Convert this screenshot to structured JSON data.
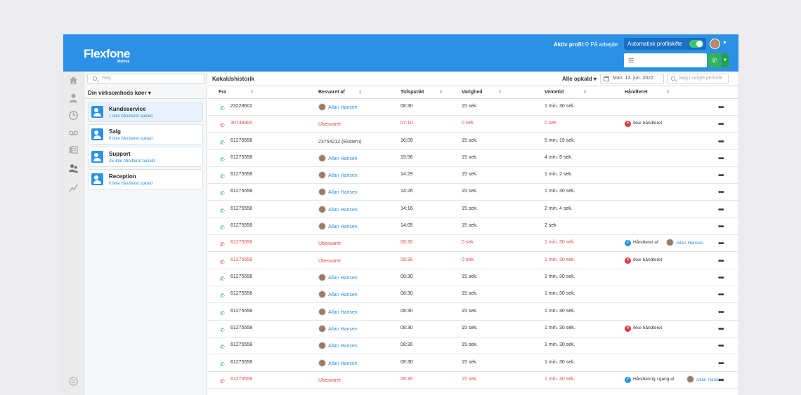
{
  "header": {
    "logo_main": "Flexfone",
    "logo_sub": "Myfone",
    "profile_label": "Aktiv profil:",
    "profile_value": "På arbejde",
    "auto_switch_label": "Automatisk profilskifte",
    "auto_switch_on": true
  },
  "sidebar": {
    "search_placeholder": "Søg",
    "queues_header": "Din virksomheds køer",
    "queues": [
      {
        "name": "Kundeservice",
        "count": "1 ikke håndteret opkald",
        "active": true
      },
      {
        "name": "Salg",
        "count": "0 ikke håndteret opkald",
        "active": false
      },
      {
        "name": "Support",
        "count": "25 ikke håndteret opkald",
        "active": false
      },
      {
        "name": "Reception",
        "count": "0 ikke håndteret opkald",
        "active": false
      }
    ]
  },
  "main": {
    "title": "Køkaldshistorik",
    "filter": "Alle opkald",
    "date": "Man. 13. jun. 2022",
    "search_placeholder": "Søg i valgte periode",
    "columns": [
      "Fra",
      "Besvaret af",
      "Tidspunkt",
      "Varighed",
      "Ventetid",
      "Håndteret"
    ]
  },
  "rows": [
    {
      "from": "23228602",
      "missed": false,
      "answered": "Allan Hansen",
      "answered_type": "agent",
      "time": "08:30",
      "duration": "15 sek.",
      "wait": "1 min. 30 sek.",
      "handled": null
    },
    {
      "from": "30739300",
      "missed": true,
      "answered": "Ubesvaret",
      "answered_type": "unanswered",
      "time": "07:10",
      "duration": "0 sek.",
      "wait": "0 sek",
      "handled": {
        "type": "x",
        "text": "Ikke håndteret"
      }
    },
    {
      "from": "61275558",
      "missed": false,
      "answered": "23754212 (Ekstern)",
      "answered_type": "external",
      "time": "16:09",
      "duration": "15 sek.",
      "wait": "5 min. 19 sek.",
      "handled": null
    },
    {
      "from": "61275558",
      "missed": false,
      "answered": "Allan Hansen",
      "answered_type": "agent",
      "time": "15:56",
      "duration": "15 sek.",
      "wait": "4 min. 9 sek.",
      "handled": null
    },
    {
      "from": "61275558",
      "missed": false,
      "answered": "Allan Hansen",
      "answered_type": "agent",
      "time": "14:29",
      "duration": "15 sek.",
      "wait": "1 min. 2 sek.",
      "handled": null
    },
    {
      "from": "61275558",
      "missed": false,
      "answered": "Allan Hansen",
      "answered_type": "agent",
      "time": "14:26",
      "duration": "15 sek.",
      "wait": "1 min. 30 sek.",
      "handled": null
    },
    {
      "from": "61275558",
      "missed": false,
      "answered": "Allan Hansen",
      "answered_type": "agent",
      "time": "14:16",
      "duration": "15 sek.",
      "wait": "2 min. 4 sek.",
      "handled": null
    },
    {
      "from": "61275558",
      "missed": false,
      "answered": "Allan Hansen",
      "answered_type": "agent",
      "time": "14:05",
      "duration": "15 sek.",
      "wait": "2 sek",
      "handled": null
    },
    {
      "from": "61275558",
      "missed": true,
      "answered": "Ubesvaret",
      "answered_type": "unanswered",
      "time": "08:30",
      "duration": "0 sek.",
      "wait": "1 min. 30 sek.",
      "handled": {
        "type": "check",
        "text": "Håndteret af",
        "agent": "Allan Hansen"
      }
    },
    {
      "from": "61275558",
      "missed": true,
      "answered": "Ubesvaret",
      "answered_type": "unanswered",
      "time": "08:30",
      "duration": "0 sek.",
      "wait": "1 min. 30 sek.",
      "handled": {
        "type": "x",
        "text": "Ikke håndteret"
      }
    },
    {
      "from": "61275558",
      "missed": false,
      "answered": "Allan Hansen",
      "answered_type": "agent",
      "time": "08:30",
      "duration": "15 sek.",
      "wait": "1 min. 30 sek.",
      "handled": null
    },
    {
      "from": "61275558",
      "missed": false,
      "answered": "Allan Hansen",
      "answered_type": "agent",
      "time": "08:30",
      "duration": "15 sek.",
      "wait": "1 min. 30 sek.",
      "handled": null
    },
    {
      "from": "61275558",
      "missed": false,
      "answered": "Allan Hansen",
      "answered_type": "agent",
      "time": "08:30",
      "duration": "15 sek.",
      "wait": "1 min. 30 sek.",
      "handled": null
    },
    {
      "from": "61275558",
      "missed": false,
      "answered": "Allan Hansen",
      "answered_type": "agent",
      "time": "08:30",
      "duration": "15 sek.",
      "wait": "1 min. 30 sek.",
      "handled": {
        "type": "x",
        "text": "Ikke håndteret"
      }
    },
    {
      "from": "61275558",
      "missed": false,
      "answered": "Allan Hansen",
      "answered_type": "agent",
      "time": "08:30",
      "duration": "15 sek.",
      "wait": "1 min. 30 sek.",
      "handled": null
    },
    {
      "from": "61275558",
      "missed": false,
      "answered": "Allan Hansen",
      "answered_type": "agent",
      "time": "08:30",
      "duration": "15 sek.",
      "wait": "1 min. 30 sek.",
      "handled": null
    },
    {
      "from": "61275558",
      "missed": true,
      "answered": "Ubesvaret",
      "answered_type": "unanswered",
      "time": "08:30",
      "duration": "15 sek.",
      "wait": "1 min. 30 sek.",
      "handled": {
        "type": "check",
        "text": "Håndtering i gang af",
        "agent": "Allan Hansen"
      }
    }
  ],
  "colors": {
    "brand": "#2b91e6",
    "missed": "#e54b4b",
    "answered_phone": "#2fb458"
  }
}
